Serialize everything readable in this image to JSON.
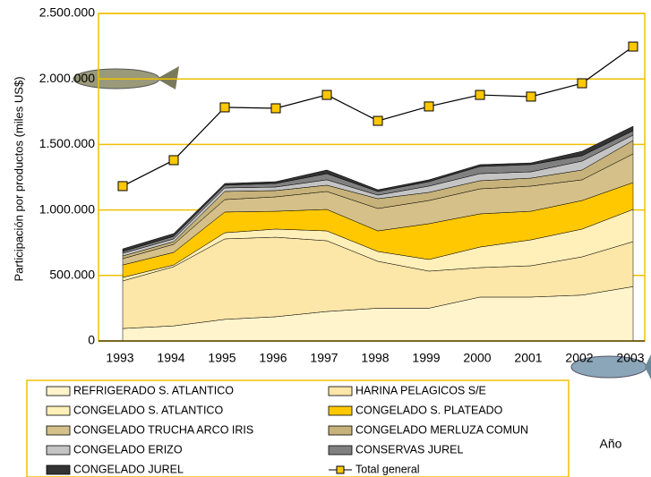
{
  "chart_data": {
    "type": "stacked-area-line",
    "y_label": "Participación por productos (miles US$)",
    "x_label": "Año",
    "categories": [
      "1993",
      "1994",
      "1995",
      "1996",
      "1997",
      "1998",
      "1999",
      "2000",
      "2001",
      "2002",
      "2003"
    ],
    "ylim": [
      0,
      2500000
    ],
    "yticks": [
      0,
      {
        "value": 500000,
        "label": "500.000"
      },
      {
        "value": 1000000,
        "label": "1.000.000"
      },
      {
        "value": 1500000,
        "label": "1.500.000"
      },
      {
        "value": 2000000,
        "label": "2.000.000"
      },
      {
        "value": 2500000,
        "label": "2.500.000"
      }
    ],
    "grid": true,
    "series": [
      {
        "name": "REFRIGERADO S. ATLANTICO",
        "color": "#FFF4CC",
        "values": [
          95000,
          115000,
          165000,
          185000,
          225000,
          250000,
          250000,
          335000,
          335000,
          350000,
          415000
        ]
      },
      {
        "name": "HARINA PELAGICOS S/E",
        "color": "#FCE6A8",
        "values": [
          363000,
          452000,
          614000,
          607000,
          540000,
          358000,
          283000,
          225000,
          239000,
          292000,
          343000
        ]
      },
      {
        "name": "CONGELADO S. ATLANTICO",
        "color": "#FFEFB8",
        "values": [
          27000,
          13000,
          47000,
          62000,
          75000,
          75000,
          89000,
          157000,
          198000,
          212000,
          246000
        ]
      },
      {
        "name": "CONGELADO S. PLATEADO",
        "color": "#FFC800",
        "values": [
          95000,
          96000,
          158000,
          136000,
          164000,
          157000,
          273000,
          253000,
          218000,
          218000,
          205000
        ]
      },
      {
        "name": "CONGELADO TRUCHA ARCO IRIS",
        "color": "#D4C088",
        "values": [
          48000,
          62000,
          95000,
          110000,
          137000,
          171000,
          177000,
          191000,
          192000,
          158000,
          219000
        ]
      },
      {
        "name": "CONGELADO MERLUZA COMUN",
        "color": "#C6B27A",
        "values": [
          21000,
          20000,
          62000,
          48000,
          48000,
          75000,
          62000,
          62000,
          61000,
          75000,
          102000
        ]
      },
      {
        "name": "CONGELADO ERIZO",
        "color": "#C4C4C4",
        "values": [
          20000,
          21000,
          27000,
          27000,
          41000,
          27000,
          48000,
          54000,
          48000,
          68000,
          41000
        ]
      },
      {
        "name": "CONSERVAS JUREL",
        "color": "#808080",
        "values": [
          14000,
          20000,
          21000,
          27000,
          47000,
          28000,
          34000,
          55000,
          55000,
          41000,
          34000
        ]
      },
      {
        "name": "CONGELADO JUREL",
        "color": "#333333",
        "values": [
          20000,
          21000,
          13000,
          14000,
          28000,
          13000,
          14000,
          14000,
          13000,
          34000,
          34000
        ]
      }
    ],
    "line": {
      "name": "Total general",
      "color": "#000000",
      "marker_color": "#FFC800",
      "values": [
        1182000,
        1380000,
        1783000,
        1776000,
        1878000,
        1680000,
        1790000,
        1878000,
        1865000,
        1967000,
        2247000
      ]
    }
  }
}
